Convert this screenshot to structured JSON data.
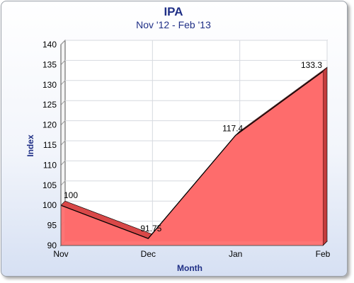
{
  "chart_data": {
    "type": "area",
    "title": "IPA",
    "subtitle": "Nov '12 - Feb '13",
    "xlabel": "Month",
    "ylabel": "Index",
    "categories": [
      "Nov",
      "Dec",
      "Jan",
      "Feb"
    ],
    "series": [
      {
        "values": [
          100,
          91.75,
          117.4,
          133.3
        ],
        "labels": [
          "100",
          "91.75",
          "117.4",
          "133.3"
        ]
      }
    ],
    "ylim": [
      90,
      140
    ],
    "yticks": [
      90,
      95,
      100,
      105,
      110,
      115,
      120,
      125,
      130,
      135,
      140
    ],
    "grid": true,
    "legend": false,
    "colors": {
      "fill": "#ff6e6e",
      "line": "#000000",
      "grid": "#d6d9df",
      "title": "#1f2f86"
    }
  }
}
